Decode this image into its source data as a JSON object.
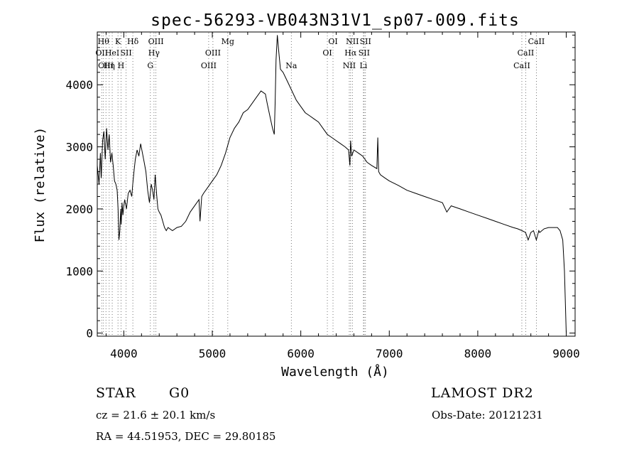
{
  "chart_data": {
    "type": "line",
    "title": "spec-56293-VB043N31V1_sp07-009.fits",
    "xlabel": "Wavelength (Å)",
    "ylabel": "Flux (relative)",
    "xlim": [
      3700,
      9100
    ],
    "ylim": [
      -50,
      4850
    ],
    "xticks": [
      {
        "value": 4000,
        "label": "4000"
      },
      {
        "value": 5000,
        "label": "5000"
      },
      {
        "value": 6000,
        "label": "6000"
      },
      {
        "value": 7000,
        "label": "7000"
      },
      {
        "value": 8000,
        "label": "8000"
      },
      {
        "value": 9000,
        "label": "9000"
      }
    ],
    "yticks": [
      {
        "value": 0,
        "label": "0"
      },
      {
        "value": 1000,
        "label": "1000"
      },
      {
        "value": 2000,
        "label": "2000"
      },
      {
        "value": 3000,
        "label": "3000"
      },
      {
        "value": 4000,
        "label": "4000"
      }
    ],
    "grid": false,
    "legend": "none",
    "series": [
      {
        "x": [
          3700,
          3720,
          3735,
          3745,
          3760,
          3775,
          3790,
          3805,
          3820,
          3835,
          3850,
          3865,
          3880,
          3895,
          3910,
          3925,
          3935,
          3945,
          3955,
          3965,
          3970,
          3980,
          3990,
          4000,
          4010,
          4030,
          4050,
          4070,
          4090,
          4101,
          4115,
          4130,
          4150,
          4170,
          4190,
          4210,
          4230,
          4250,
          4270,
          4290,
          4310,
          4325,
          4340,
          4355,
          4370,
          4385,
          4400,
          4420,
          4440,
          4460,
          4480,
          4500,
          4550,
          4600,
          4650,
          4700,
          4750,
          4800,
          4850,
          4861,
          4880,
          4900,
          4950,
          5000,
          5050,
          5100,
          5150,
          5200,
          5250,
          5300,
          5350,
          5400,
          5450,
          5500,
          5550,
          5600,
          5620,
          5650,
          5680,
          5700,
          5710,
          5720,
          5735,
          5750,
          5770,
          5800,
          5850,
          5900,
          5950,
          6000,
          6050,
          6100,
          6150,
          6200,
          6250,
          6300,
          6350,
          6400,
          6450,
          6500,
          6540,
          6555,
          6563,
          6575,
          6600,
          6650,
          6700,
          6750,
          6800,
          6860,
          6870,
          6880,
          6900,
          6950,
          7000,
          7100,
          7200,
          7300,
          7400,
          7500,
          7600,
          7650,
          7700,
          7800,
          7900,
          8000,
          8100,
          8200,
          8300,
          8400,
          8450,
          8500,
          8540,
          8570,
          8600,
          8630,
          8662,
          8690,
          8700,
          8750,
          8800,
          8850,
          8900,
          8930,
          8960,
          8980,
          9000
        ],
        "y": [
          2700,
          2400,
          2900,
          2500,
          3100,
          3250,
          2800,
          3300,
          2950,
          3200,
          2750,
          2900,
          2700,
          2450,
          2400,
          2300,
          2000,
          1500,
          1650,
          2000,
          1750,
          2100,
          1900,
          2050,
          2150,
          2000,
          2250,
          2300,
          2200,
          2400,
          2600,
          2800,
          2950,
          2850,
          3050,
          2900,
          2750,
          2600,
          2300,
          2100,
          2400,
          2300,
          2150,
          2550,
          2250,
          2000,
          1950,
          1900,
          1800,
          1700,
          1650,
          1700,
          1650,
          1700,
          1720,
          1800,
          1950,
          2050,
          2150,
          1800,
          2200,
          2250,
          2350,
          2450,
          2550,
          2700,
          2900,
          3150,
          3300,
          3400,
          3550,
          3600,
          3700,
          3800,
          3900,
          3850,
          3700,
          3500,
          3300,
          3200,
          3700,
          4400,
          4800,
          4550,
          4250,
          4200,
          4050,
          3900,
          3750,
          3650,
          3550,
          3500,
          3450,
          3400,
          3300,
          3200,
          3150,
          3100,
          3050,
          3000,
          2950,
          2700,
          3100,
          2850,
          2950,
          2900,
          2850,
          2750,
          2700,
          2650,
          3150,
          2600,
          2550,
          2500,
          2450,
          2380,
          2300,
          2250,
          2200,
          2150,
          2100,
          1950,
          2050,
          2000,
          1950,
          1900,
          1850,
          1800,
          1750,
          1700,
          1680,
          1650,
          1620,
          1500,
          1620,
          1650,
          1500,
          1650,
          1620,
          1680,
          1700,
          1700,
          1700,
          1650,
          1500,
          1000,
          0
        ]
      }
    ],
    "line_markers": [
      {
        "wavelength": 3750,
        "label": "OII",
        "row": 2
      },
      {
        "wavelength": 3770,
        "label": "Hθ",
        "row": 1
      },
      {
        "wavelength": 3798,
        "label": "OIII",
        "row": 3
      },
      {
        "wavelength": 3835,
        "label": "Hη",
        "row": 3
      },
      {
        "wavelength": 3869,
        "label": "HeI",
        "row": 2
      },
      {
        "wavelength": 3934,
        "label": "K",
        "row": 1
      },
      {
        "wavelength": 3968,
        "label": "H",
        "row": 3
      },
      {
        "wavelength": 4026,
        "label": "SII",
        "row": 2
      },
      {
        "wavelength": 4102,
        "label": "Hδ",
        "row": 1
      },
      {
        "wavelength": 4300,
        "label": "G",
        "row": 3
      },
      {
        "wavelength": 4341,
        "label": "Hγ",
        "row": 2
      },
      {
        "wavelength": 4363,
        "label": "OIII",
        "row": 1
      },
      {
        "wavelength": 4959,
        "label": "OIII",
        "row": 3
      },
      {
        "wavelength": 5007,
        "label": "OIII",
        "row": 2
      },
      {
        "wavelength": 5175,
        "label": "Mg",
        "row": 1
      },
      {
        "wavelength": 5893,
        "label": "Na",
        "row": 3
      },
      {
        "wavelength": 6300,
        "label": "OI",
        "row": 2
      },
      {
        "wavelength": 6364,
        "label": "OI",
        "row": 1
      },
      {
        "wavelength": 6548,
        "label": "NII",
        "row": 3
      },
      {
        "wavelength": 6563,
        "label": "Hα",
        "row": 2
      },
      {
        "wavelength": 6583,
        "label": "NII",
        "row": 1
      },
      {
        "wavelength": 6708,
        "label": "Li",
        "row": 3
      },
      {
        "wavelength": 6716,
        "label": "SII",
        "row": 2
      },
      {
        "wavelength": 6731,
        "label": "SII",
        "row": 1
      },
      {
        "wavelength": 8498,
        "label": "CaII",
        "row": 3
      },
      {
        "wavelength": 8542,
        "label": "CaII",
        "row": 2
      },
      {
        "wavelength": 8662,
        "label": "CaII",
        "row": 1
      }
    ]
  },
  "info": {
    "object_class": "STAR",
    "subclass": "G0",
    "survey": "LAMOST DR2",
    "redshift": "cz = 21.6 ± 20.1 km/s",
    "obs_date": "Obs-Date: 20121231",
    "coords": "RA =  44.51953, DEC =  29.80185"
  }
}
